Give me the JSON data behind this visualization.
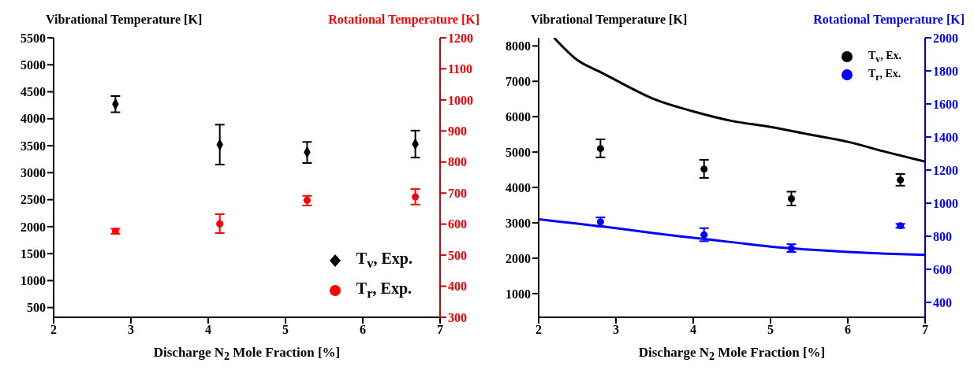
{
  "chart_data": [
    {
      "type": "scatter",
      "xlabel": "Discharge N$_{2}$ Mole Fraction [%]",
      "ylabel": "Vibrational Temperature [K]",
      "y2label": "Rotational Temperature [K]",
      "xlim": [
        2,
        7
      ],
      "xticks": [
        2,
        3,
        4,
        5,
        6,
        7
      ],
      "ylim": [
        320,
        5500
      ],
      "yticks": [
        500,
        1000,
        1500,
        2000,
        2500,
        3000,
        3500,
        4000,
        4500,
        5000,
        5500
      ],
      "y2lim": [
        300,
        1200
      ],
      "y2ticks": [
        300,
        400,
        500,
        600,
        700,
        800,
        900,
        1000,
        1100,
        1200
      ],
      "legend": "bottom right",
      "series": [
        {
          "name": "T$_{v}$, Exp.",
          "marker": "diamond",
          "color": "#000000",
          "x": [
            2.8,
            4.15,
            5.28,
            6.68
          ],
          "values": [
            4270,
            3520,
            3380,
            3530
          ],
          "errors": [
            [
              4120,
              4420
            ],
            [
              3150,
              3890
            ],
            [
              3180,
              3570
            ],
            [
              3280,
              3780
            ]
          ]
        },
        {
          "name": "T$_{r}$, Exp.",
          "marker": "circle",
          "color": "#ff0000",
          "axis": "y2",
          "x": [
            2.8,
            4.15,
            5.28,
            6.68
          ],
          "values": [
            577,
            601,
            677,
            688
          ],
          "errors": [
            [
              569,
              585
            ],
            [
              571,
              632
            ],
            [
              660,
              691
            ],
            [
              663,
              713
            ]
          ]
        }
      ]
    },
    {
      "type": "scatter",
      "xlabel": "Discharge N$_{2}$ Mole Fraction [%]",
      "ylabel": "Vibrational Temperature [K]",
      "y2label": "Rotational Temperature [K]",
      "xlim": [
        2,
        7
      ],
      "xticks": [
        2,
        3,
        4,
        5,
        6,
        7
      ],
      "ylim": [
        330,
        8230
      ],
      "yticks": [
        1000,
        2000,
        3000,
        4000,
        5000,
        6000,
        7000,
        8000
      ],
      "y2lim": [
        310,
        2000
      ],
      "y2ticks": [
        400,
        600,
        800,
        1000,
        1200,
        1400,
        1600,
        1800,
        2000
      ],
      "legend": "top right",
      "series": [
        {
          "type": "line",
          "color": "#000000",
          "marker": "none",
          "line_style": "solid",
          "x": [
            2.2,
            2.5,
            2.8,
            3,
            3.5,
            4,
            4.5,
            5,
            5.5,
            6,
            6.5,
            7
          ],
          "values": [
            8230,
            7600,
            7260,
            7030,
            6490,
            6150,
            5880,
            5710,
            5500,
            5290,
            5000,
            4730
          ]
        },
        {
          "type": "line",
          "color": "#0000ff",
          "marker": "none",
          "line_style": "solid",
          "axis": "y2",
          "x": [
            2,
            2.5,
            3,
            3.5,
            4,
            4.5,
            5,
            5.5,
            6,
            6.5,
            7
          ],
          "values": [
            903,
            876,
            849,
            818,
            791,
            764,
            737,
            719,
            705,
            694,
            687
          ]
        },
        {
          "name": "T$_{v}$, Ex.",
          "marker": "circle",
          "color": "#000000",
          "x": [
            2.8,
            4.14,
            5.27,
            6.68
          ],
          "values": [
            5100,
            4520,
            3680,
            4210
          ],
          "errors": [
            [
              4850,
              5360
            ],
            [
              4270,
              4780
            ],
            [
              3490,
              3880
            ],
            [
              4050,
              4380
            ]
          ]
        },
        {
          "name": "T$_{r}$, Ex.",
          "marker": "circle",
          "color": "#0000ff",
          "axis": "y2",
          "x": [
            2.8,
            4.14,
            5.27,
            6.68
          ],
          "values": [
            887,
            809,
            727,
            863
          ],
          "errors": [
            [
              860,
              914
            ],
            [
              770,
              849
            ],
            [
              705,
              752
            ],
            [
              851,
              875
            ]
          ]
        }
      ]
    }
  ]
}
